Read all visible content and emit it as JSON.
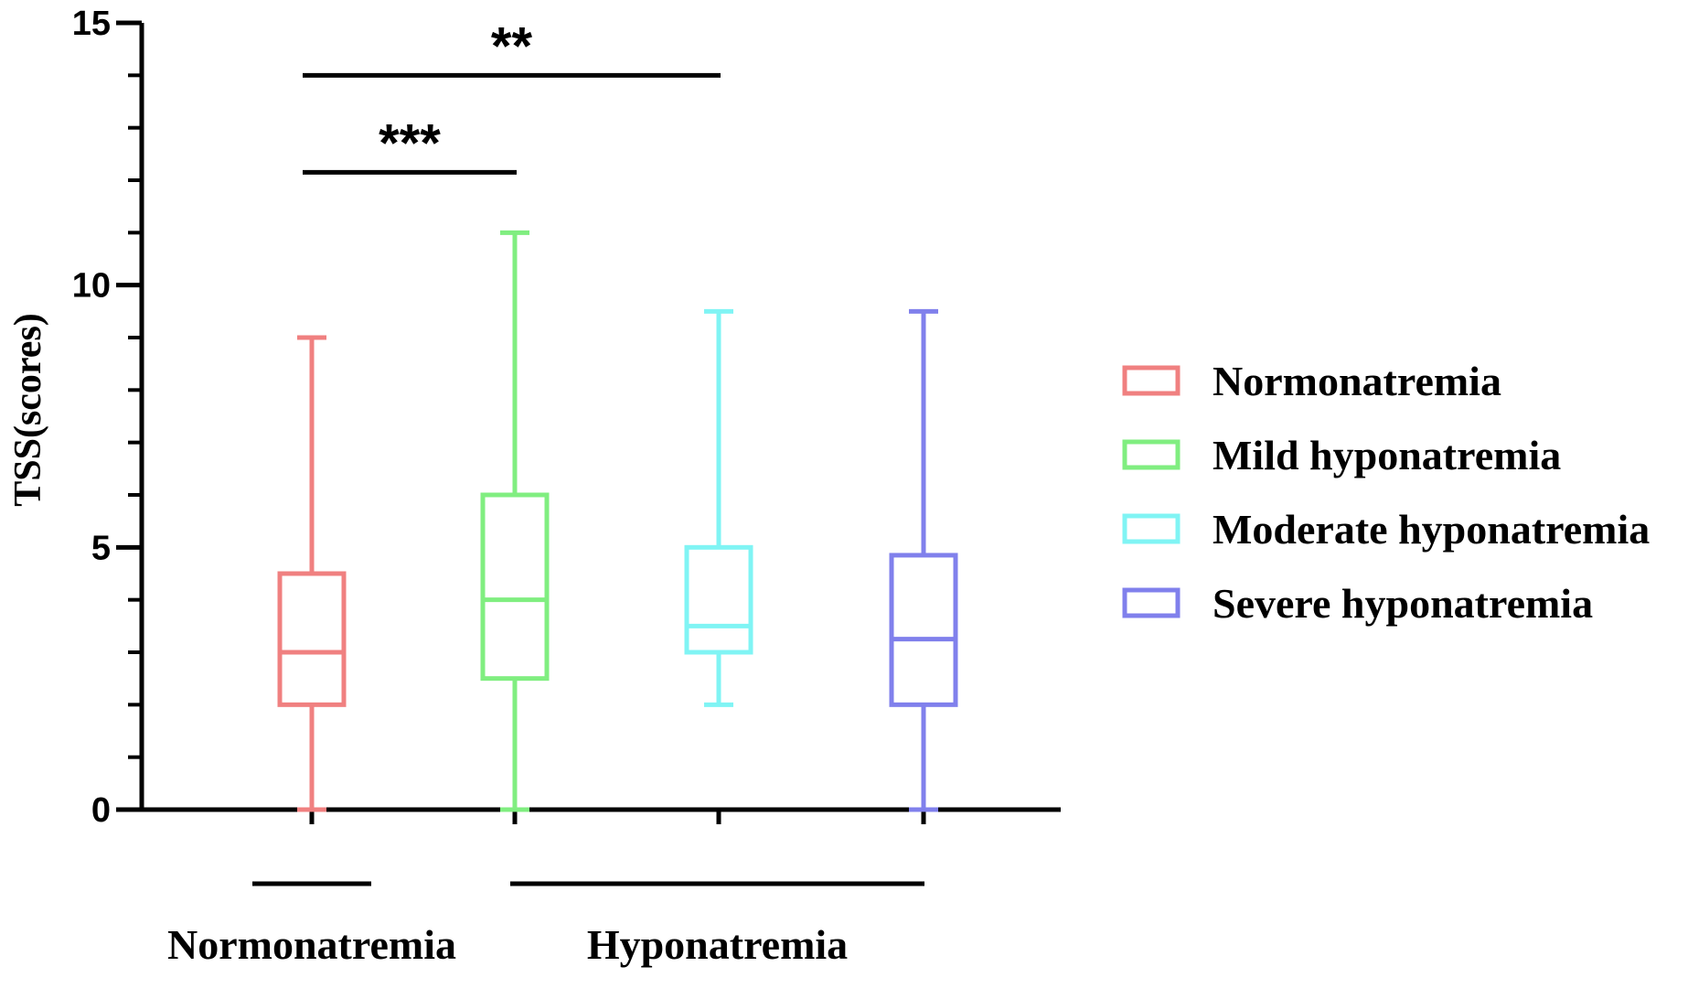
{
  "chart_data": {
    "type": "box",
    "ylabel": "TSS(scores)",
    "ylim": [
      0,
      15
    ],
    "yticks": [
      0,
      5,
      10,
      15
    ],
    "yminor_step": 1,
    "grid": false,
    "legend_position": "right",
    "series": [
      {
        "name": "Normonatremia",
        "color": "#F08080",
        "min": 0,
        "q1": 2,
        "median": 3,
        "q3": 4.5,
        "max": 9
      },
      {
        "name": "Mild hyponatremia",
        "color": "#80EE80",
        "min": 0,
        "q1": 2.5,
        "median": 4,
        "q3": 6,
        "max": 11
      },
      {
        "name": "Moderate hyponatremia",
        "color": "#80F4F4",
        "min": 2,
        "q1": 3,
        "median": 3.5,
        "q3": 5,
        "max": 9.5
      },
      {
        "name": "Severe hyponatremia",
        "color": "#8080EC",
        "min": 0,
        "q1": 2,
        "median": 3.25,
        "q3": 4.85,
        "max": 9.5
      }
    ],
    "significance": [
      {
        "from": 0,
        "to": 2,
        "label": "**",
        "y": 14
      },
      {
        "from": 0,
        "to": 1,
        "label": "***",
        "y": 12.15
      }
    ],
    "groups": [
      {
        "label": "Normonatremia",
        "members": [
          0
        ]
      },
      {
        "label": "Hyponatremia",
        "members": [
          1,
          2,
          3
        ]
      }
    ]
  }
}
